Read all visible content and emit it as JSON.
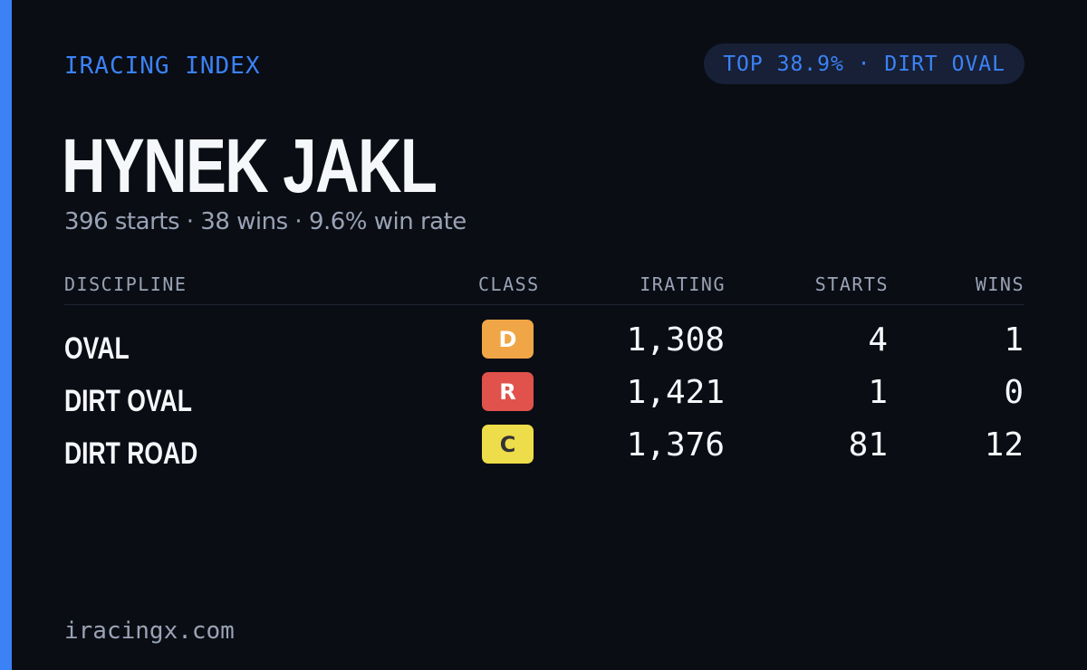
{
  "brand": "IRACING INDEX",
  "rank_badge": "TOP 38.9% · DIRT OVAL",
  "driver": {
    "name": "HYNEK JAKL",
    "summary": "396 starts · 38 wins · 9.6% win rate"
  },
  "table": {
    "headers": {
      "discipline": "DISCIPLINE",
      "class": "CLASS",
      "irating": "IRATING",
      "starts": "STARTS",
      "wins": "WINS"
    },
    "rows": [
      {
        "discipline": "OVAL",
        "class": "D",
        "class_color": "#f0a646",
        "class_text_color": "#ffffff",
        "irating": "1,308",
        "starts": "4",
        "wins": "1"
      },
      {
        "discipline": "DIRT OVAL",
        "class": "R",
        "class_color": "#e0524b",
        "class_text_color": "#ffffff",
        "irating": "1,421",
        "starts": "1",
        "wins": "0"
      },
      {
        "discipline": "DIRT ROAD",
        "class": "C",
        "class_color": "#eedd4a",
        "class_text_color": "#333333",
        "irating": "1,376",
        "starts": "81",
        "wins": "12"
      }
    ]
  },
  "footer": "iracingx.com",
  "colors": {
    "accent": "#3b82f6",
    "background": "#0a0d14",
    "pill_background": "#172036",
    "muted_text": "#99a3b5",
    "primary_text": "#f5f7fb"
  }
}
